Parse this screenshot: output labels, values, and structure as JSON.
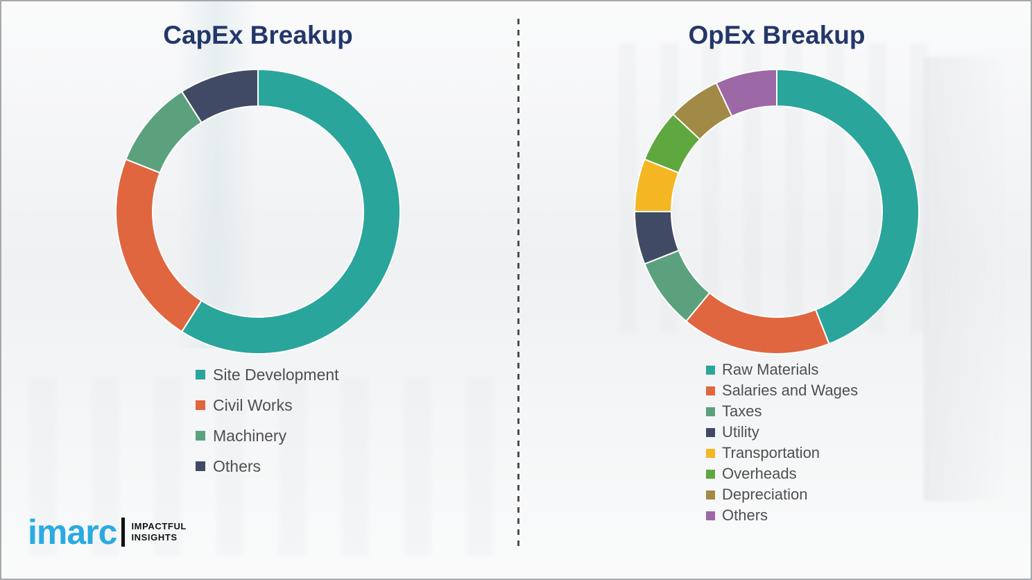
{
  "divider": {
    "style": "dashed-vertical"
  },
  "chart_data": [
    {
      "type": "donut",
      "title": "CapEx Breakup",
      "labels": [
        "Site Development",
        "Civil Works",
        "Machinery",
        "Others"
      ],
      "values": [
        59,
        22,
        10,
        9
      ],
      "colors": [
        "#2aa59b",
        "#e0663f",
        "#5ca17d",
        "#414a64"
      ],
      "start_angle_deg": 0,
      "direction": "clockwise",
      "inner_radius_ratio": 0.74,
      "legend_position": "below-left",
      "data_labels": "none"
    },
    {
      "type": "donut",
      "title": "OpEx Breakup",
      "labels": [
        "Raw Materials",
        "Salaries and Wages",
        "Taxes",
        "Utility",
        "Transportation",
        "Overheads",
        "Depreciation",
        "Others"
      ],
      "values": [
        44,
        17,
        8,
        6,
        6,
        6,
        6,
        7
      ],
      "colors": [
        "#2aa59b",
        "#e0663f",
        "#5ca17d",
        "#414a64",
        "#f5b623",
        "#5fa73f",
        "#a08a45",
        "#9c68a6"
      ],
      "start_angle_deg": 0,
      "direction": "clockwise",
      "inner_radius_ratio": 0.74,
      "legend_position": "below-left",
      "data_labels": "none"
    }
  ],
  "logo": {
    "brand": "imarc",
    "tagline_line1": "IMPACTFUL",
    "tagline_line2": "INSIGHTS"
  },
  "colors": {
    "title_navy": "#24376b",
    "legend_text": "#4f4f4f",
    "background": "#f1f2f4",
    "border": "#a4a8ab",
    "logo_blue": "#29abe2",
    "segment_gap": "#ffffff"
  }
}
